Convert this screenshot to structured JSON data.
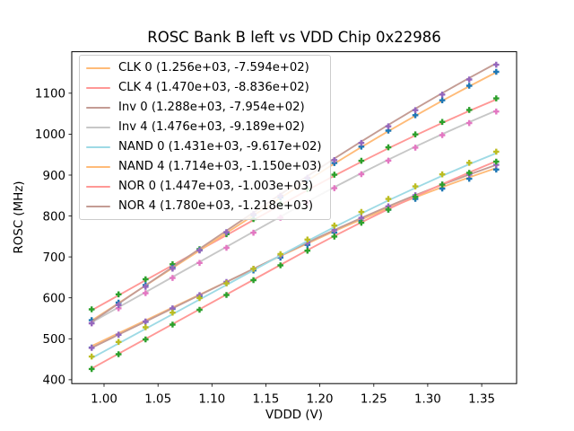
{
  "title": "ROSC Bank B left vs VDD Chip 0x22986",
  "axes": {
    "xlabel": "VDDD (V)",
    "ylabel": "ROSC (MHz)",
    "x_ticks": [
      {
        "value": 1.0,
        "label": "1.00"
      },
      {
        "value": 1.05,
        "label": "1.05"
      },
      {
        "value": 1.1,
        "label": "1.10"
      },
      {
        "value": 1.15,
        "label": "1.15"
      },
      {
        "value": 1.2,
        "label": "1.20"
      },
      {
        "value": 1.25,
        "label": "1.25"
      },
      {
        "value": 1.3,
        "label": "1.30"
      },
      {
        "value": 1.35,
        "label": "1.35"
      }
    ],
    "y_ticks": [
      {
        "value": 400,
        "label": "400"
      },
      {
        "value": 500,
        "label": "500"
      },
      {
        "value": 600,
        "label": "600"
      },
      {
        "value": 700,
        "label": "700"
      },
      {
        "value": 800,
        "label": "800"
      },
      {
        "value": 900,
        "label": "900"
      },
      {
        "value": 1000,
        "label": "1000"
      },
      {
        "value": 1100,
        "label": "1100"
      }
    ],
    "xlim": [
      0.97,
      1.382
    ],
    "ylim": [
      390.5,
      1201.4
    ],
    "grid": false
  },
  "legend": {
    "position": "upper left"
  },
  "chart_data": {
    "type": "scatter",
    "title": "ROSC Bank B left vs VDD Chip 0x22986",
    "xlabel": "VDDD (V)",
    "ylabel": "ROSC (MHz)",
    "vdd_points": [
      0.9885,
      1.0135,
      1.0385,
      1.0635,
      1.0885,
      1.1135,
      1.1385,
      1.1635,
      1.1885,
      1.2135,
      1.2385,
      1.2635,
      1.2885,
      1.3135,
      1.3385,
      1.3635
    ],
    "series": [
      {
        "name": "CLK 0",
        "label": "CLK 0 (1.256e+03, -7.594e+02)",
        "fit_slope_mhz_per_v": 1256,
        "fit_intercept_mhz": -759.4,
        "line_color": "#ffbb78",
        "marker_color": "#1f77b4"
      },
      {
        "name": "CLK 4",
        "label": "CLK 4 (1.470e+03, -8.836e+02)",
        "fit_slope_mhz_per_v": 1470,
        "fit_intercept_mhz": -883.6,
        "line_color": "#ff9896",
        "marker_color": "#2ca02c"
      },
      {
        "name": "Inv 0",
        "label": "Inv 0 (1.288e+03, -7.954e+02)",
        "fit_slope_mhz_per_v": 1288,
        "fit_intercept_mhz": -795.4,
        "line_color": "#c49c94",
        "marker_color": "#9467bd"
      },
      {
        "name": "Inv 4",
        "label": "Inv 4 (1.476e+03, -9.189e+02)",
        "fit_slope_mhz_per_v": 1476,
        "fit_intercept_mhz": -918.9,
        "line_color": "#c7c7c7",
        "marker_color": "#e377c2"
      },
      {
        "name": "NAND 0",
        "label": "NAND 0 (1.431e+03, -9.617e+02)",
        "fit_slope_mhz_per_v": 1431,
        "fit_intercept_mhz": -961.7,
        "line_color": "#9edae5",
        "marker_color": "#bcbd22"
      },
      {
        "name": "NAND 4",
        "label": "NAND 4 (1.714e+03, -1.150e+03)",
        "fit_slope_mhz_per_v": 1714,
        "fit_intercept_mhz": -1150.0,
        "line_color": "#ffbb78",
        "marker_color": "#1f77b4"
      },
      {
        "name": "NOR 0",
        "label": "NOR 0 (1.447e+03, -1.003e+03)",
        "fit_slope_mhz_per_v": 1447,
        "fit_intercept_mhz": -1003.0,
        "line_color": "#ff9896",
        "marker_color": "#2ca02c"
      },
      {
        "name": "NOR 4",
        "label": "NOR 4 (1.780e+03, -1.218e+03)",
        "fit_slope_mhz_per_v": 1780,
        "fit_intercept_mhz": -1218.0,
        "line_color": "#c49c94",
        "marker_color": "#9467bd"
      }
    ]
  }
}
